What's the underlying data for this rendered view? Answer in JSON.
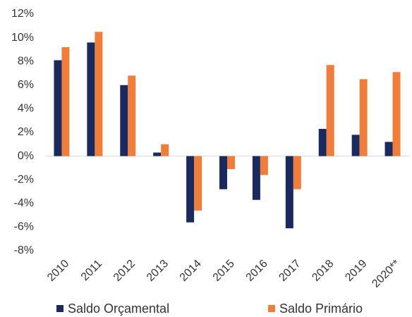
{
  "chart_data": {
    "type": "bar",
    "categories": [
      "2010",
      "2011",
      "2012",
      "2013",
      "2014",
      "2015",
      "2016",
      "2017",
      "2018",
      "2019",
      "2020**"
    ],
    "series": [
      {
        "name": "Saldo Orçamental",
        "color": "#1b2a5e",
        "values": [
          8.1,
          9.6,
          6.0,
          0.3,
          -5.6,
          -2.8,
          -3.7,
          -6.1,
          2.3,
          1.8,
          1.2
        ]
      },
      {
        "name": "Saldo Primário",
        "color": "#f07d3a",
        "values": [
          9.2,
          10.5,
          6.8,
          1.0,
          -4.6,
          -1.1,
          -1.6,
          -2.8,
          7.7,
          6.5,
          7.1
        ]
      }
    ],
    "ylim": [
      -8,
      12
    ],
    "yticks": [
      {
        "value": -8,
        "label": "-8%"
      },
      {
        "value": -6,
        "label": "-6%"
      },
      {
        "value": -4,
        "label": "-4%"
      },
      {
        "value": -2,
        "label": "-2%"
      },
      {
        "value": 0,
        "label": "0%"
      },
      {
        "value": 2,
        "label": "2%"
      },
      {
        "value": 4,
        "label": "4%"
      },
      {
        "value": 6,
        "label": "6%"
      },
      {
        "value": 8,
        "label": "8%"
      },
      {
        "value": 10,
        "label": "10%"
      },
      {
        "value": 12,
        "label": "12%"
      }
    ],
    "legend": "bottom"
  }
}
